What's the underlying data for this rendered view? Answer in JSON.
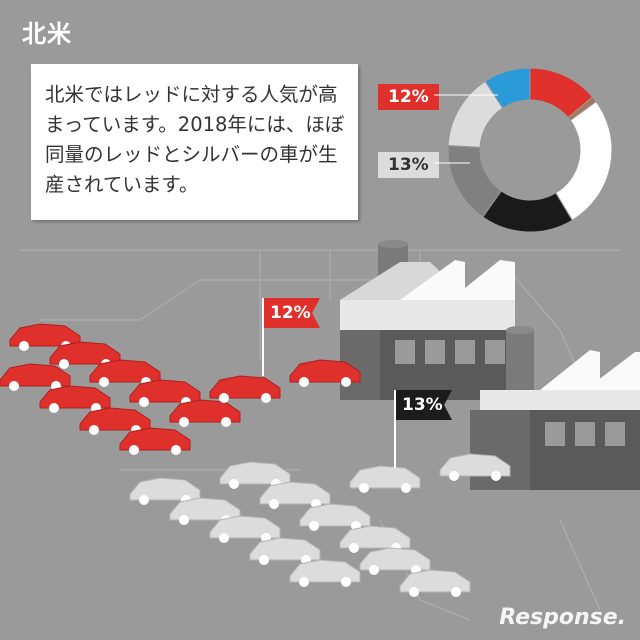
{
  "region_title": "北米",
  "description": "北米ではレッドに対する人気が高まっています。2018年には、ほぼ同量のレッドとシルバーの車が生産されています。",
  "watermark": "Response.",
  "colors": {
    "red": "#e0302c",
    "silver": "#dcdcdc",
    "white": "#ffffff",
    "black": "#1a1a1a",
    "gray": "#808080",
    "blue": "#2a9ad8",
    "brown": "#a87658",
    "background": "#9a9a9a"
  },
  "chart_data": {
    "type": "pie",
    "labels": [
      "12%",
      "13%"
    ],
    "slices": [
      {
        "color": "red",
        "value": 12,
        "label": "12%"
      },
      {
        "color": "brown",
        "value": 1
      },
      {
        "color": "white",
        "value": 23
      },
      {
        "color": "black",
        "value": 16
      },
      {
        "color": "gray",
        "value": 14
      },
      {
        "color": "silver",
        "value": 13,
        "label": "13%"
      },
      {
        "color": "blue",
        "value": 8
      }
    ]
  },
  "flags": {
    "red": "12%",
    "dark": "13%"
  }
}
